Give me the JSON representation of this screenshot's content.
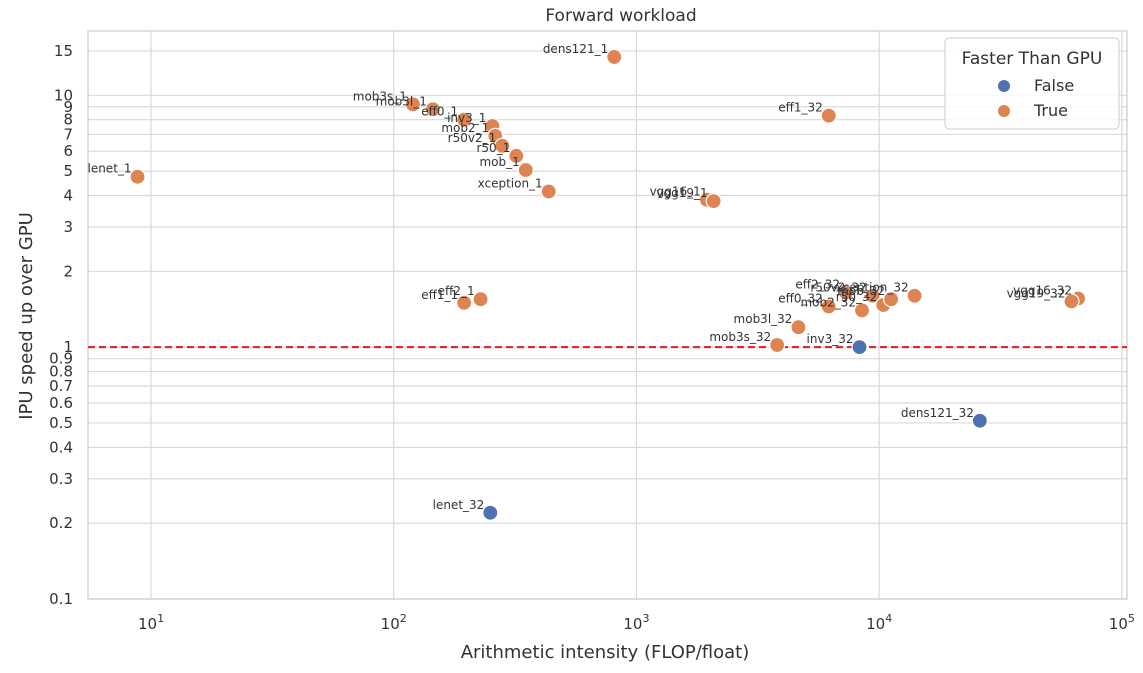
{
  "chart_data": {
    "type": "scatter",
    "title": "Forward workload",
    "xlabel": "Arithmetic intensity  (FLOP/float)",
    "ylabel": "IPU speed up over GPU",
    "xscale": "log",
    "yscale": "log",
    "xlim": [
      5.5,
      105000
    ],
    "ylim": [
      0.1,
      18
    ],
    "x_ticks": [
      {
        "value": 10,
        "base": "10",
        "exp": "1"
      },
      {
        "value": 100,
        "base": "10",
        "exp": "2"
      },
      {
        "value": 1000,
        "base": "10",
        "exp": "3"
      },
      {
        "value": 10000,
        "base": "10",
        "exp": "4"
      },
      {
        "value": 100000,
        "base": "10",
        "exp": "5"
      }
    ],
    "y_ticks": [
      {
        "value": 0.1,
        "label": "0.1"
      },
      {
        "value": 0.2,
        "label": "0.2"
      },
      {
        "value": 0.3,
        "label": "0.3"
      },
      {
        "value": 0.4,
        "label": "0.4"
      },
      {
        "value": 0.5,
        "label": "0.5"
      },
      {
        "value": 0.6,
        "label": "0.6"
      },
      {
        "value": 0.7,
        "label": "0.7"
      },
      {
        "value": 0.8,
        "label": "0.8"
      },
      {
        "value": 0.9,
        "label": "0.9"
      },
      {
        "value": 1,
        "label": "1"
      },
      {
        "value": 2,
        "label": "2"
      },
      {
        "value": 3,
        "label": "3"
      },
      {
        "value": 4,
        "label": "4"
      },
      {
        "value": 5,
        "label": "5"
      },
      {
        "value": 6,
        "label": "6"
      },
      {
        "value": 7,
        "label": "7"
      },
      {
        "value": 8,
        "label": "8"
      },
      {
        "value": 9,
        "label": "9"
      },
      {
        "value": 10,
        "label": "10"
      },
      {
        "value": 15,
        "label": "15"
      }
    ],
    "grid": true,
    "reference_line": {
      "y": 1,
      "color": "#e41a1c",
      "style": "dashed"
    },
    "legend": {
      "title": "Faster Than GPU",
      "placement": "top-right",
      "entries": [
        {
          "label": "False",
          "color": "#4c72b0"
        },
        {
          "label": "True",
          "color": "#dd8452"
        }
      ]
    },
    "points": [
      {
        "label": "lenet_1",
        "x": 8.8,
        "y": 4.75,
        "faster": true
      },
      {
        "label": "mob3s_1",
        "x": 120,
        "y": 9.2,
        "faster": true
      },
      {
        "label": "mob3l_1",
        "x": 145,
        "y": 8.8,
        "faster": true
      },
      {
        "label": "eff0_1",
        "x": 195,
        "y": 8.0,
        "faster": true
      },
      {
        "label": "inv3_1",
        "x": 255,
        "y": 7.55,
        "faster": true
      },
      {
        "label": "mob2_1",
        "x": 262,
        "y": 6.9,
        "faster": true
      },
      {
        "label": "r50v2_1",
        "x": 280,
        "y": 6.3,
        "faster": true
      },
      {
        "label": "r50_1",
        "x": 320,
        "y": 5.75,
        "faster": true
      },
      {
        "label": "mob_1",
        "x": 350,
        "y": 5.05,
        "faster": true
      },
      {
        "label": "xception_1",
        "x": 435,
        "y": 4.15,
        "faster": true
      },
      {
        "label": "dens121_1",
        "x": 810,
        "y": 14.2,
        "faster": true
      },
      {
        "label": "vgg16_1",
        "x": 1950,
        "y": 3.85,
        "faster": true
      },
      {
        "label": "vgg19_1",
        "x": 2080,
        "y": 3.8,
        "faster": true
      },
      {
        "label": "eff1_1",
        "x": 195,
        "y": 1.5,
        "faster": true
      },
      {
        "label": "eff2_1",
        "x": 228,
        "y": 1.55,
        "faster": true
      },
      {
        "label": "lenet_32",
        "x": 250,
        "y": 0.22,
        "faster": false
      },
      {
        "label": "eff1_32",
        "x": 6200,
        "y": 8.3,
        "faster": true
      },
      {
        "label": "mob3s_32",
        "x": 3800,
        "y": 1.02,
        "faster": true
      },
      {
        "label": "mob3l_32",
        "x": 4650,
        "y": 1.2,
        "faster": true
      },
      {
        "label": "inv3_32",
        "x": 8300,
        "y": 1.0,
        "faster": false
      },
      {
        "label": "eff0_32",
        "x": 6200,
        "y": 1.45,
        "faster": true
      },
      {
        "label": "mob2_32",
        "x": 8500,
        "y": 1.4,
        "faster": true
      },
      {
        "label": "eff2_32",
        "x": 7300,
        "y": 1.65,
        "faster": true
      },
      {
        "label": "r50v2_32",
        "x": 9400,
        "y": 1.6,
        "faster": true
      },
      {
        "label": "r50_32",
        "x": 10400,
        "y": 1.47,
        "faster": true
      },
      {
        "label": "mob_32",
        "x": 11200,
        "y": 1.55,
        "faster": true
      },
      {
        "label": "xception_32",
        "x": 14000,
        "y": 1.6,
        "faster": true
      },
      {
        "label": "dens121_32",
        "x": 26000,
        "y": 0.51,
        "faster": false
      },
      {
        "label": "vgg16_32",
        "x": 66000,
        "y": 1.56,
        "faster": true
      },
      {
        "label": "vgg19_32",
        "x": 62000,
        "y": 1.52,
        "faster": true
      }
    ]
  }
}
